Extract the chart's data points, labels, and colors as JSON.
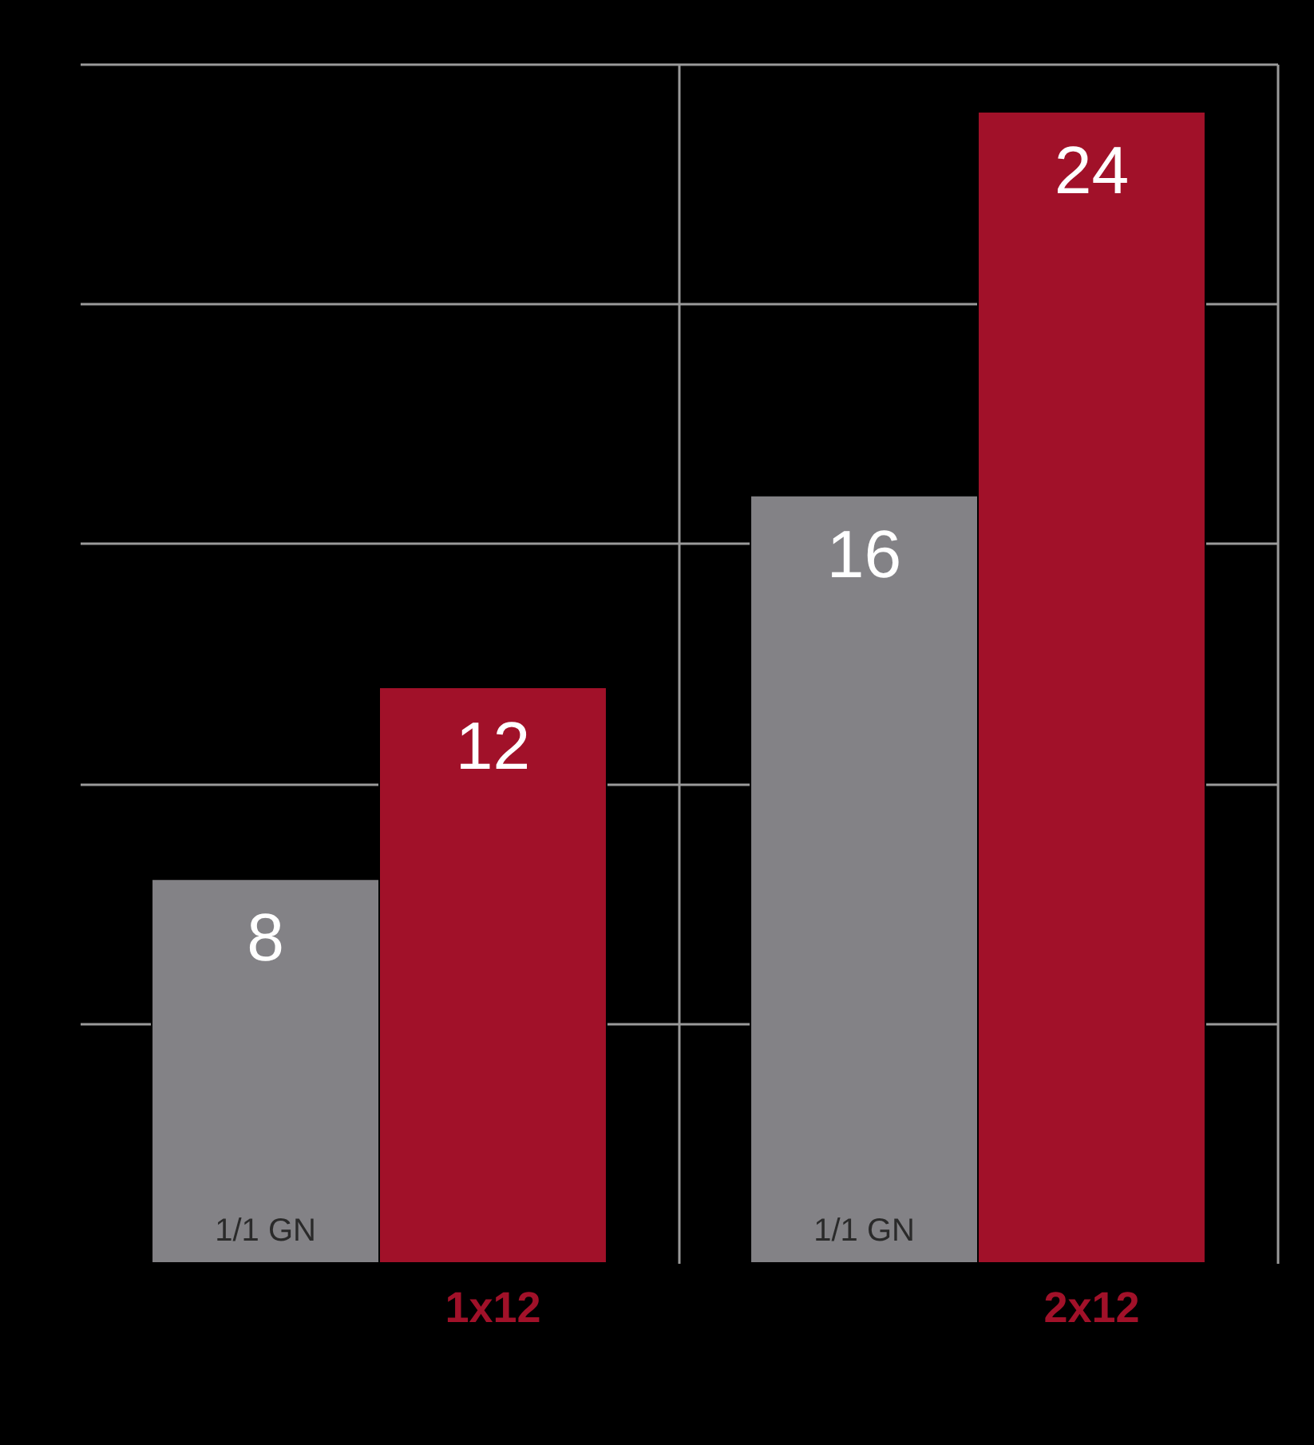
{
  "chart_data": {
    "type": "bar",
    "categories": [
      "1x12",
      "2x12"
    ],
    "series": [
      {
        "name": "1/1 GN",
        "color": "#838286",
        "values": [
          8,
          16
        ]
      },
      {
        "color": "#a11129",
        "values": [
          12,
          24
        ]
      }
    ],
    "ylim": [
      0,
      25
    ],
    "yticks": [
      {
        "value": 5,
        "label": null
      },
      {
        "value": 10,
        "label": null
      },
      {
        "value": 15,
        "label": null
      },
      {
        "value": 20,
        "label": null
      },
      {
        "value": 25,
        "label": null
      }
    ],
    "tick_labels": "x",
    "grid": true,
    "data_labels": true,
    "legend": false
  }
}
